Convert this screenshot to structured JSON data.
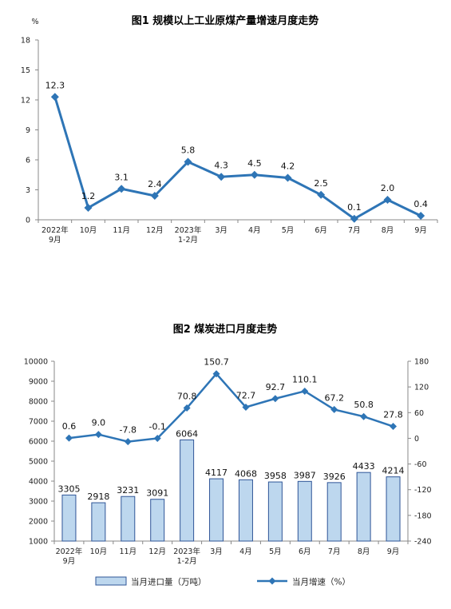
{
  "charts": [
    {
      "type": "line",
      "title": "图1  规模以上工业原煤产量增速月度走势",
      "unit_label": "%",
      "categories": [
        [
          "2022年",
          "9月"
        ],
        [
          "10月"
        ],
        [
          "11月"
        ],
        [
          "12月"
        ],
        [
          "2023年",
          "1-2月"
        ],
        [
          "3月"
        ],
        [
          "4月"
        ],
        [
          "5月"
        ],
        [
          "6月"
        ],
        [
          "7月"
        ],
        [
          "8月"
        ],
        [
          "9月"
        ]
      ],
      "y_ticks": [
        "0",
        "3",
        "6",
        "9",
        "12",
        "15",
        "18"
      ],
      "ylim": [
        0,
        18
      ],
      "series": [
        {
          "values": [
            12.3,
            1.2,
            3.1,
            2.4,
            5.8,
            4.3,
            4.5,
            4.2,
            2.5,
            0.1,
            2.0,
            0.4
          ],
          "labels": [
            "12.3",
            "1.2",
            "3.1",
            "2.4",
            "5.8",
            "4.3",
            "4.5",
            "4.2",
            "2.5",
            "0.1",
            "2.0",
            "0.4"
          ]
        }
      ],
      "colors": {
        "line": "#2e75b6"
      },
      "grid": false
    },
    {
      "type": "bar+line",
      "title": "图2  煤炭进口月度走势",
      "categories": [
        [
          "2022年",
          "9月"
        ],
        [
          "10月"
        ],
        [
          "11月"
        ],
        [
          "12月"
        ],
        [
          "2023年",
          "1-2月"
        ],
        [
          "3月"
        ],
        [
          "4月"
        ],
        [
          "5月"
        ],
        [
          "6月"
        ],
        [
          "7月"
        ],
        [
          "8月"
        ],
        [
          "9月"
        ]
      ],
      "y_left_ticks": [
        "1000",
        "2000",
        "3000",
        "4000",
        "5000",
        "6000",
        "7000",
        "8000",
        "9000",
        "10000"
      ],
      "ylim_left": [
        1000,
        10000
      ],
      "y_right_ticks": [
        "-240",
        "-180",
        "-120",
        "-60",
        "0",
        "60",
        "120",
        "180"
      ],
      "ylim_right": [
        -240,
        180
      ],
      "series": [
        {
          "name": "当月进口量（万吨）",
          "type": "bar",
          "axis": "left",
          "values": [
            3305,
            2918,
            3231,
            3091,
            6064,
            4117,
            4068,
            3958,
            3987,
            3926,
            4433,
            4214
          ],
          "labels": [
            "3305",
            "2918",
            "3231",
            "3091",
            "6064",
            "4117",
            "4068",
            "3958",
            "3987",
            "3926",
            "4433",
            "4214"
          ]
        },
        {
          "name": "当月增速（%）",
          "type": "line",
          "axis": "right",
          "values": [
            0.6,
            9.0,
            -7.8,
            -0.1,
            70.8,
            150.7,
            72.7,
            92.7,
            110.1,
            67.2,
            50.8,
            27.8
          ],
          "labels": [
            "0.6",
            "9.0",
            "-7.8",
            "-0.1",
            "70.8",
            "150.7",
            "72.7",
            "92.7",
            "110.1",
            "67.2",
            "50.8",
            "27.8"
          ]
        }
      ],
      "colors": {
        "bar_fill": "#bdd7ee",
        "bar_stroke": "#2f5597",
        "line": "#2e75b6"
      },
      "legend": "bottom",
      "grid": false
    }
  ]
}
